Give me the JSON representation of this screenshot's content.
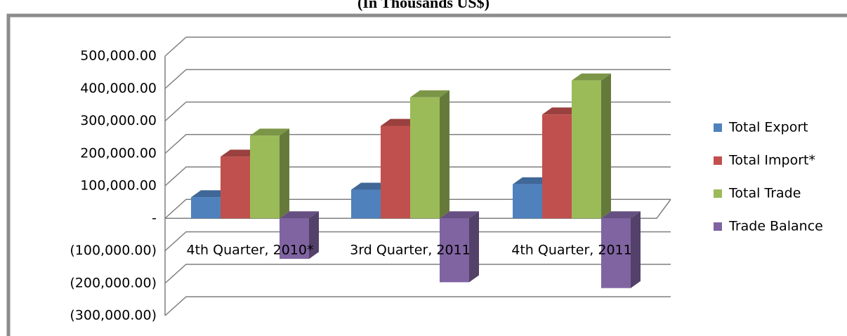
{
  "chart_data": {
    "type": "bar3d",
    "title": "(In Thousands US$)",
    "categories": [
      "4th Quarter, 2010*",
      "3rd Quarter, 2011",
      "4th Quarter, 2011"
    ],
    "series": [
      {
        "name": "Total Export",
        "color": "#4f81bd",
        "values": [
          65000,
          88000,
          105000
        ]
      },
      {
        "name": "Total Import*",
        "color": "#c0504d",
        "values": [
          190000,
          285000,
          320000
        ]
      },
      {
        "name": "Total Trade",
        "color": "#9bbb59",
        "values": [
          255000,
          373000,
          425000
        ]
      },
      {
        "name": "Trade Balance",
        "color": "#8064a2",
        "values": [
          -125000,
          -197000,
          -215000
        ]
      }
    ],
    "ylim": [
      -300000,
      500000
    ],
    "yticks": [
      {
        "value": -300000,
        "label": "(300,000.00)"
      },
      {
        "value": -200000,
        "label": "(200,000.00)"
      },
      {
        "value": -100000,
        "label": "(100,000.00)"
      },
      {
        "value": 0,
        "label": "-"
      },
      {
        "value": 100000,
        "label": "100,000.00"
      },
      {
        "value": 200000,
        "label": "200,000.00"
      },
      {
        "value": 300000,
        "label": "300,000.00"
      },
      {
        "value": 400000,
        "label": "400,000.00"
      },
      {
        "value": 500000,
        "label": "500,000.00"
      }
    ],
    "grid": true,
    "legend": "right"
  }
}
